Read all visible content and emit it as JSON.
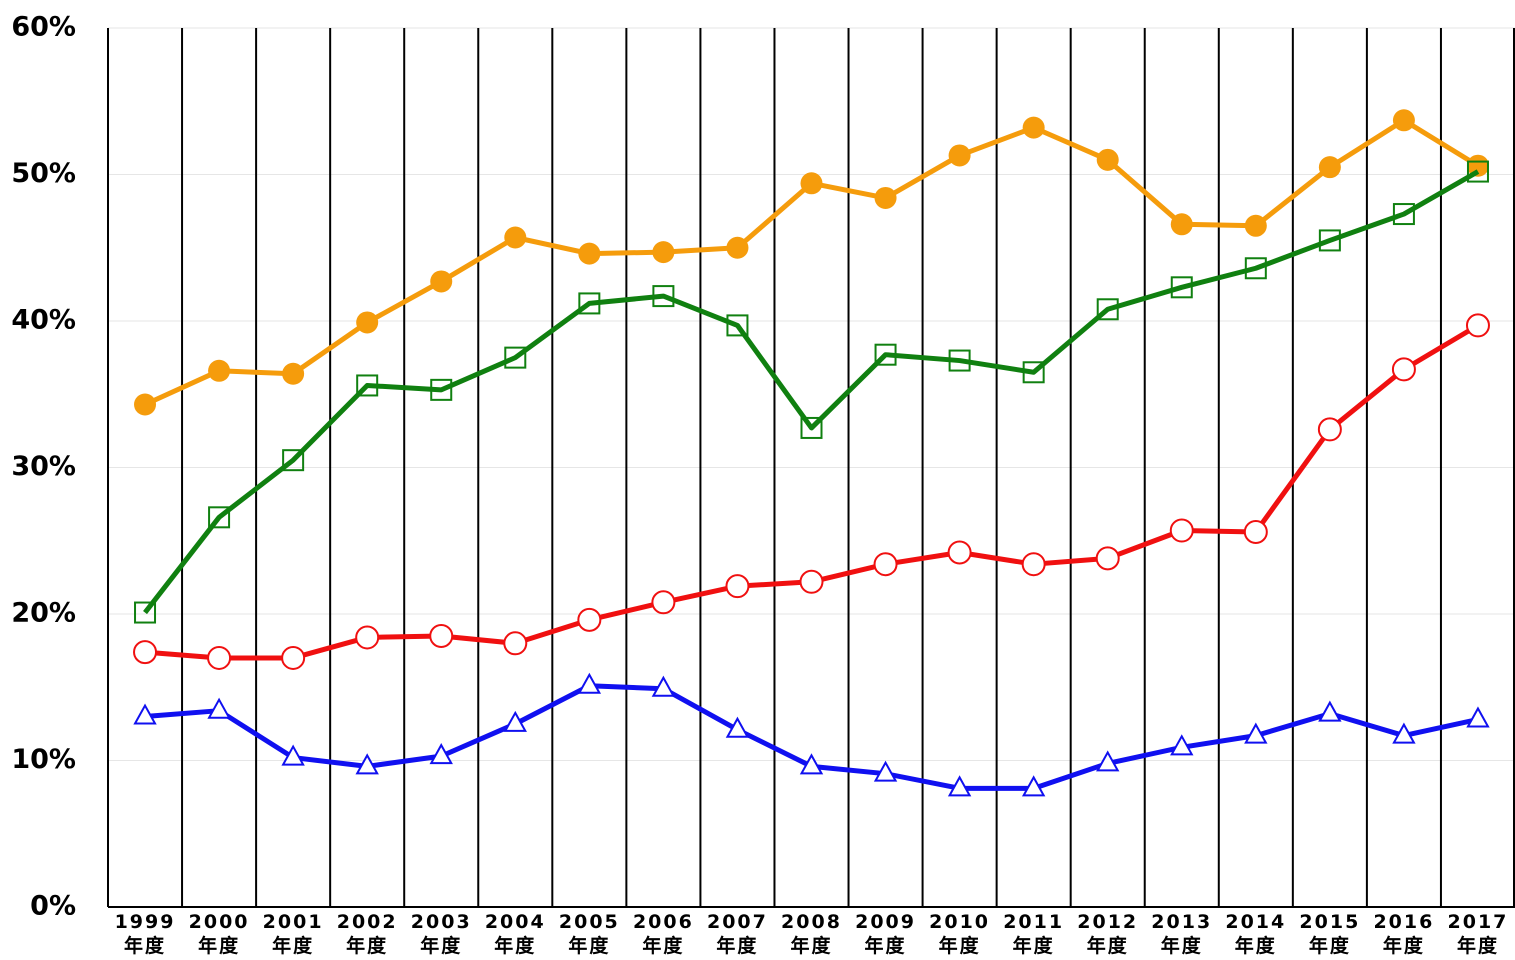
{
  "chart_data": {
    "type": "line",
    "categories": [
      "1999年度",
      "2000年度",
      "2001年度",
      "2002年度",
      "2003年度",
      "2004年度",
      "2005年度",
      "2006年度",
      "2007年度",
      "2008年度",
      "2009年度",
      "2010年度",
      "2011年度",
      "2012年度",
      "2013年度",
      "2014年度",
      "2015年度",
      "2016年度",
      "2017年度"
    ],
    "series": [
      {
        "color": "#f59c0c",
        "marker": "filled-circle",
        "values": [
          34.3,
          36.6,
          36.4,
          39.9,
          42.7,
          45.7,
          44.6,
          44.7,
          45.0,
          49.4,
          48.4,
          51.3,
          53.2,
          51.0,
          46.6,
          46.5,
          50.5,
          53.7,
          50.6
        ]
      },
      {
        "color": "#108010",
        "marker": "square",
        "values": [
          20.1,
          26.6,
          30.5,
          35.6,
          35.3,
          37.5,
          41.2,
          41.7,
          39.7,
          32.7,
          37.7,
          37.3,
          36.5,
          40.8,
          42.3,
          43.6,
          45.5,
          47.3,
          50.2
        ]
      },
      {
        "color": "#f01010",
        "marker": "circle",
        "values": [
          17.4,
          17.0,
          17.0,
          18.4,
          18.5,
          18.0,
          19.6,
          20.8,
          21.9,
          22.2,
          23.4,
          24.2,
          23.4,
          23.8,
          25.7,
          25.6,
          32.6,
          36.7,
          39.7
        ]
      },
      {
        "color": "#1010f0",
        "marker": "triangle",
        "values": [
          13.0,
          13.4,
          10.2,
          9.6,
          10.3,
          12.5,
          15.1,
          14.9,
          12.1,
          9.6,
          9.1,
          8.1,
          8.1,
          9.8,
          10.9,
          11.7,
          13.2,
          11.7,
          12.8
        ]
      }
    ],
    "ylim": [
      0,
      60
    ],
    "yticks": [
      {
        "value": 0,
        "label": "0%"
      },
      {
        "value": 10,
        "label": "10%"
      },
      {
        "value": 20,
        "label": "20%"
      },
      {
        "value": 30,
        "label": "30%"
      },
      {
        "value": 40,
        "label": "40%"
      },
      {
        "value": 50,
        "label": "50%"
      },
      {
        "value": 60,
        "label": "60%"
      }
    ],
    "grid": true
  }
}
